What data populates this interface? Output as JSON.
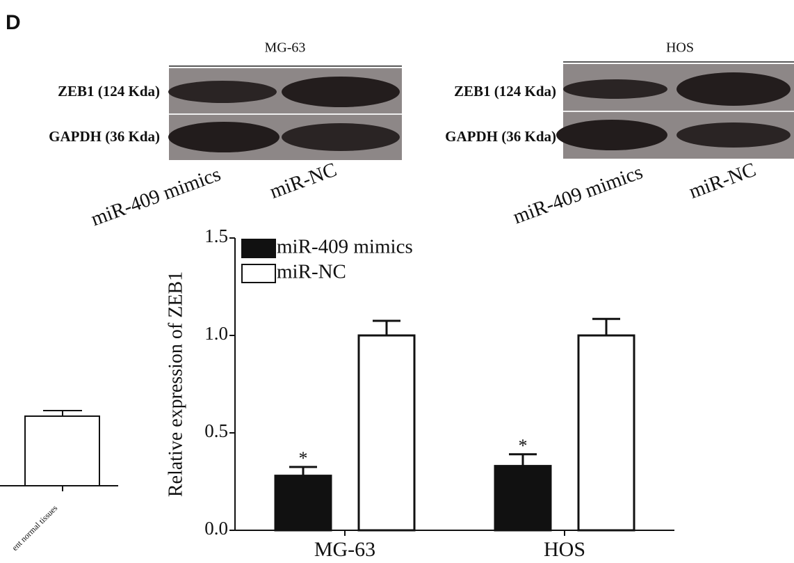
{
  "panel_label": "D",
  "blots": [
    {
      "title": "MG-63",
      "rows": [
        "ZEB1 (124 Kda)",
        "GAPDH (36 Kda)"
      ],
      "lanes": [
        "miR-409 mimics",
        "miR-NC"
      ]
    },
    {
      "title": "HOS",
      "rows": [
        "ZEB1 (124 Kda)",
        "GAPDH (36 Kda)"
      ],
      "lanes": [
        "miR-409 mimics",
        "miR-NC"
      ]
    }
  ],
  "fragment_label": "ent normal tissues",
  "chart_data": {
    "type": "bar",
    "ylabel": "Relative expression of ZEB1",
    "categories": [
      "MG-63",
      "HOS"
    ],
    "series": [
      {
        "name": "miR-409 mimics",
        "color": "#111111",
        "values": [
          0.28,
          0.33
        ],
        "errors": [
          0.045,
          0.06
        ],
        "significance": [
          "*",
          "*"
        ]
      },
      {
        "name": "miR-NC",
        "color": "#ffffff",
        "values": [
          1.0,
          1.0
        ],
        "errors": [
          0.075,
          0.085
        ]
      }
    ],
    "ylim": [
      0,
      1.5
    ],
    "yticks": [
      {
        "value": 0,
        "label": "0.0"
      },
      {
        "value": 0.5,
        "label": "0.5"
      },
      {
        "value": 1,
        "label": "1.0"
      },
      {
        "value": 1.5,
        "label": "1.5"
      }
    ],
    "legend": "upper left"
  }
}
